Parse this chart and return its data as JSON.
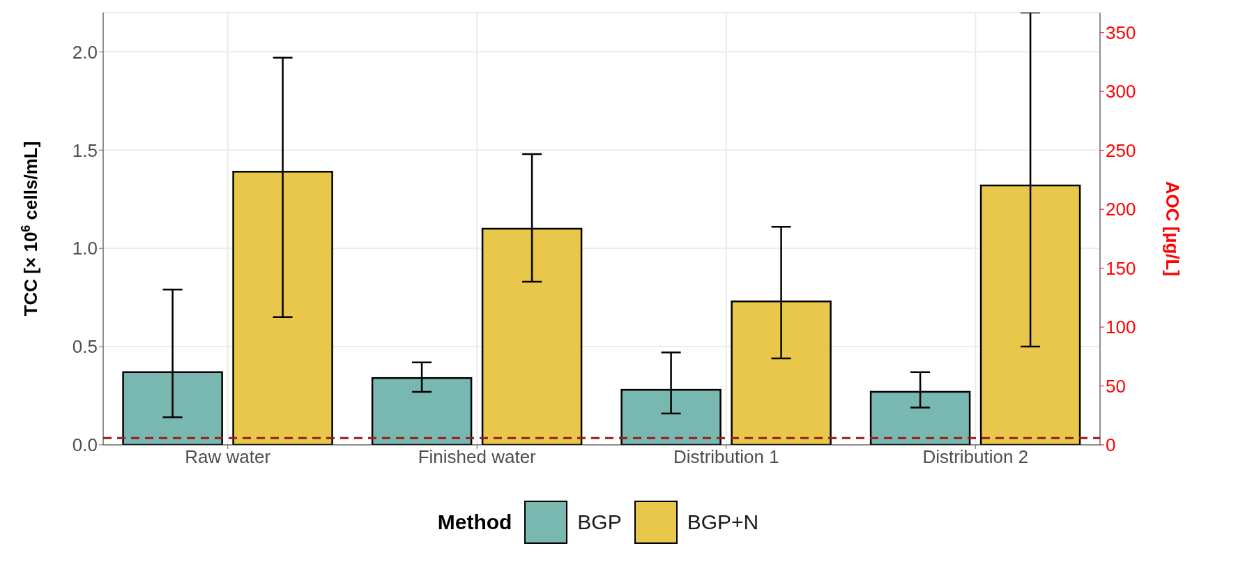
{
  "chart_data": {
    "type": "bar",
    "categories": [
      "Raw water",
      "Finished water",
      "Distribution 1",
      "Distribution 2"
    ],
    "series": [
      {
        "name": "BGP",
        "color": "#79b8b1",
        "values": [
          0.37,
          0.34,
          0.28,
          0.27
        ],
        "errors": [
          [
            0.14,
            0.79
          ],
          [
            0.27,
            0.42
          ],
          [
            0.16,
            0.47
          ],
          [
            0.19,
            0.37
          ]
        ]
      },
      {
        "name": "BGP+N",
        "color": "#e9c74a",
        "values": [
          1.39,
          1.1,
          0.73,
          1.32
        ],
        "errors": [
          [
            0.65,
            1.97
          ],
          [
            0.83,
            1.48
          ],
          [
            0.44,
            1.11
          ],
          [
            0.5,
            2.2
          ]
        ]
      }
    ],
    "ylabel": "TCC [× 10$^{6}$ cells/mL]",
    "y2label": "AOC [µg/L]",
    "legend_title": "Method",
    "ylim": [
      0,
      2.2
    ],
    "yticks": [
      {
        "value": 0,
        "label": "0.0"
      },
      {
        "value": 0.5,
        "label": "0.5"
      },
      {
        "value": 1,
        "label": "1.0"
      },
      {
        "value": 1.5,
        "label": "1.5"
      },
      {
        "value": 2,
        "label": "2.0"
      }
    ],
    "y2lim": [
      0,
      367
    ],
    "y2ticks": [
      0,
      50,
      100,
      150,
      200,
      250,
      300,
      350
    ],
    "ref_lines": [
      {
        "axis": "y",
        "value": 0.035,
        "color": "#9b1c1c",
        "line_style": "dashed"
      }
    ],
    "grid": true,
    "legend": "bottom"
  }
}
